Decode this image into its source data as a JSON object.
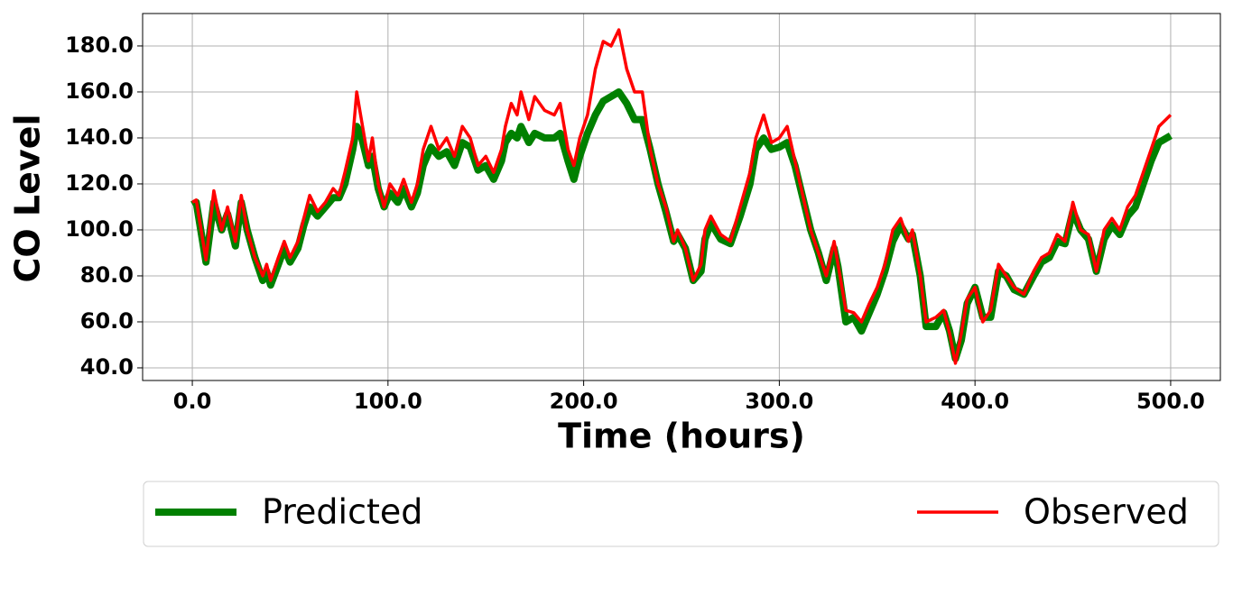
{
  "chart_data": {
    "type": "line",
    "xlabel": "Time (hours)",
    "ylabel": "CO Level",
    "x": [
      0,
      2,
      7,
      11,
      15,
      18,
      22,
      25,
      28,
      32,
      36,
      38,
      40,
      44,
      47,
      50,
      54,
      57,
      60,
      64,
      68,
      72,
      75,
      78,
      82,
      84,
      86,
      90,
      92,
      95,
      98,
      101,
      105,
      108,
      112,
      115,
      118,
      122,
      126,
      130,
      134,
      138,
      142,
      146,
      150,
      154,
      158,
      160,
      163,
      166,
      168,
      172,
      175,
      180,
      185,
      188,
      192,
      195,
      198,
      202,
      206,
      210,
      214,
      218,
      222,
      226,
      230,
      234,
      238,
      242,
      246,
      248,
      252,
      256,
      260,
      262,
      265,
      270,
      275,
      280,
      285,
      288,
      292,
      296,
      300,
      304,
      308,
      312,
      316,
      320,
      324,
      328,
      330,
      334,
      338,
      342,
      346,
      350,
      354,
      358,
      362,
      366,
      368,
      372,
      375,
      380,
      384,
      387,
      390,
      393,
      396,
      400,
      404,
      408,
      412,
      416,
      420,
      425,
      430,
      434,
      438,
      442,
      446,
      450,
      454,
      458,
      462,
      466,
      470,
      474,
      478,
      482,
      486,
      490,
      494,
      500
    ],
    "series": [
      {
        "name": "Predicted",
        "color": "#008000",
        "width": 8,
        "values": [
          111,
          112,
          86,
          112,
          100,
          107,
          93,
          112,
          100,
          88,
          78,
          82,
          76,
          85,
          92,
          86,
          92,
          102,
          110,
          106,
          110,
          114,
          114,
          120,
          135,
          145,
          142,
          128,
          132,
          118,
          110,
          116,
          112,
          118,
          110,
          116,
          128,
          136,
          132,
          134,
          128,
          138,
          136,
          126,
          128,
          122,
          130,
          138,
          142,
          140,
          145,
          138,
          142,
          140,
          140,
          142,
          130,
          122,
          132,
          142,
          150,
          156,
          158,
          160,
          155,
          148,
          148,
          135,
          120,
          108,
          95,
          98,
          92,
          78,
          82,
          96,
          103,
          96,
          94,
          106,
          120,
          135,
          140,
          135,
          136,
          138,
          128,
          114,
          100,
          90,
          78,
          92,
          84,
          60,
          62,
          56,
          64,
          72,
          82,
          95,
          102,
          96,
          98,
          80,
          58,
          58,
          64,
          56,
          44,
          52,
          68,
          75,
          62,
          62,
          82,
          80,
          74,
          72,
          80,
          86,
          88,
          95,
          94,
          108,
          100,
          96,
          82,
          96,
          102,
          98,
          106,
          110,
          120,
          130,
          138,
          141
        ]
      },
      {
        "name": "Observed",
        "color": "#ff0000",
        "width": 3.5,
        "values": [
          112,
          113,
          87,
          117,
          100,
          110,
          95,
          115,
          100,
          88,
          80,
          85,
          78,
          88,
          95,
          88,
          95,
          105,
          115,
          108,
          112,
          118,
          115,
          125,
          140,
          160,
          150,
          130,
          140,
          120,
          110,
          120,
          115,
          122,
          112,
          120,
          135,
          145,
          135,
          140,
          132,
          145,
          140,
          128,
          132,
          125,
          135,
          145,
          155,
          150,
          160,
          148,
          158,
          152,
          150,
          155,
          135,
          128,
          140,
          150,
          170,
          182,
          180,
          187,
          170,
          160,
          160,
          135,
          120,
          110,
          95,
          100,
          92,
          78,
          85,
          100,
          106,
          98,
          95,
          110,
          125,
          140,
          150,
          138,
          140,
          145,
          130,
          115,
          100,
          90,
          80,
          95,
          85,
          65,
          64,
          60,
          68,
          75,
          85,
          100,
          105,
          95,
          100,
          80,
          60,
          62,
          65,
          55,
          42,
          55,
          70,
          75,
          60,
          65,
          85,
          80,
          75,
          72,
          82,
          88,
          90,
          98,
          95,
          112,
          100,
          98,
          82,
          100,
          105,
          100,
          110,
          115,
          125,
          135,
          145,
          150
        ]
      }
    ],
    "xlim": [
      -25.4,
      525.4
    ],
    "ylim": [
      34.5,
      194.1
    ],
    "xticks": [
      {
        "value": 0,
        "label": "0.0"
      },
      {
        "value": 100,
        "label": "100.0"
      },
      {
        "value": 200,
        "label": "200.0"
      },
      {
        "value": 300,
        "label": "300.0"
      },
      {
        "value": 400,
        "label": "400.0"
      },
      {
        "value": 500,
        "label": "500.0"
      }
    ],
    "yticks": [
      {
        "value": 40,
        "label": "40.0"
      },
      {
        "value": 60,
        "label": "60.0"
      },
      {
        "value": 80,
        "label": "80.0"
      },
      {
        "value": 100,
        "label": "100.0"
      },
      {
        "value": 120,
        "label": "120.0"
      },
      {
        "value": 140,
        "label": "140.0"
      },
      {
        "value": 160,
        "label": "160.0"
      },
      {
        "value": 180,
        "label": "180.0"
      }
    ],
    "grid": true,
    "legend": "bottom"
  }
}
